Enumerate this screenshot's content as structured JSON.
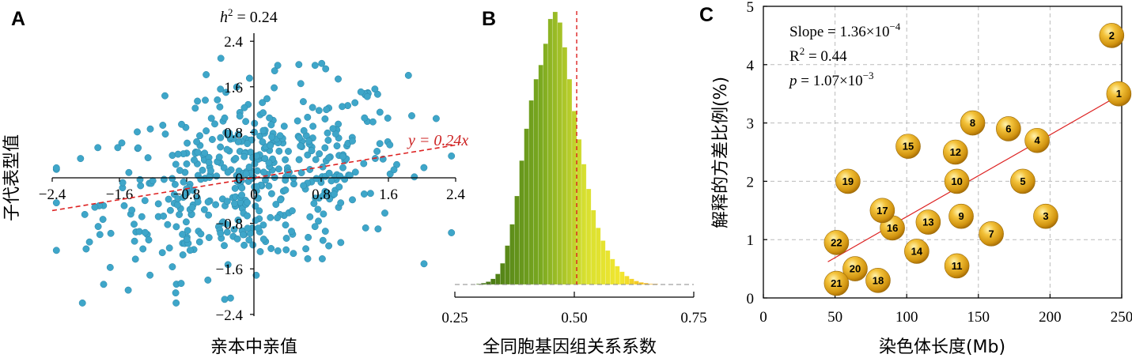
{
  "panels": {
    "a": "A",
    "b": "B",
    "c": "C"
  },
  "colors": {
    "points": "#3ea6c9",
    "regression": "#dd2222",
    "bubble": "#e0a818",
    "grid": "#bbbbbb"
  },
  "chart_data": [
    {
      "type": "scatter",
      "panel": "A",
      "title_prefix": "h",
      "title_sup": "2",
      "title_rest": " = 0.24",
      "xlabel": "亲本中亲值",
      "ylabel": "子代表型值",
      "xlim": [
        -2.4,
        2.4
      ],
      "ylim": [
        -2.4,
        2.4
      ],
      "xticks": [
        "−2.4",
        "−1.6",
        "−0.8",
        "0",
        "0.8",
        "1.6",
        "2.4"
      ],
      "yticks": [
        "2.4",
        "1.6",
        "0.8",
        "0",
        "−0.8",
        "−1.6",
        "−2.4"
      ],
      "fit": {
        "slope": 0.24,
        "label": "y = 0.24x"
      },
      "n_points_approx": 500
    },
    {
      "type": "bar",
      "panel": "B",
      "xlabel": "全同胞基因组关系系数",
      "xlim": [
        0.25,
        0.75
      ],
      "xticks": [
        "0.25",
        "0.50",
        "0.75"
      ],
      "bin_start": 0.295,
      "bin_width": 0.01,
      "values": [
        1,
        2,
        4,
        8,
        15,
        30,
        55,
        85,
        125,
        175,
        220,
        260,
        290,
        310,
        340,
        375,
        385,
        370,
        335,
        290,
        245,
        205,
        170,
        135,
        105,
        80,
        62,
        48,
        36,
        26,
        18,
        12,
        8,
        5,
        3,
        2,
        1,
        1
      ],
      "mean_line": 0.505
    },
    {
      "type": "scatter",
      "panel": "C",
      "xlabel": "染色体长度(Mb)",
      "ylabel": "解释的方差比例(%)",
      "xlim": [
        0,
        250
      ],
      "ylim": [
        0,
        5
      ],
      "xticks": [
        "0",
        "50",
        "100",
        "150",
        "200",
        "250"
      ],
      "yticks": [
        "0",
        "1",
        "2",
        "3",
        "4",
        "5"
      ],
      "stats": {
        "slope_prefix": "Slope = 1.36×10",
        "slope_exp": "−4",
        "r2_prefix": "R",
        "r2_sup": "2",
        "r2_rest": " = 0.44",
        "p_prefix": "p",
        "p_rest": " = 1.07×10",
        "p_exp": "−3"
      },
      "fit_line": {
        "x": [
          45,
          250
        ],
        "y": [
          0.62,
          3.5
        ]
      },
      "points": [
        {
          "label": "1",
          "x": 248,
          "y": 3.5
        },
        {
          "label": "2",
          "x": 243,
          "y": 4.5
        },
        {
          "label": "3",
          "x": 197,
          "y": 1.4
        },
        {
          "label": "4",
          "x": 191,
          "y": 2.7
        },
        {
          "label": "5",
          "x": 181,
          "y": 2.0
        },
        {
          "label": "6",
          "x": 171,
          "y": 2.9
        },
        {
          "label": "7",
          "x": 159,
          "y": 1.1
        },
        {
          "label": "8",
          "x": 146,
          "y": 3.0
        },
        {
          "label": "9",
          "x": 138,
          "y": 1.4
        },
        {
          "label": "10",
          "x": 135,
          "y": 2.0
        },
        {
          "label": "11",
          "x": 135,
          "y": 0.55
        },
        {
          "label": "12",
          "x": 134,
          "y": 2.5
        },
        {
          "label": "13",
          "x": 115,
          "y": 1.3
        },
        {
          "label": "14",
          "x": 107,
          "y": 0.8
        },
        {
          "label": "15",
          "x": 101,
          "y": 2.6
        },
        {
          "label": "16",
          "x": 90,
          "y": 1.2
        },
        {
          "label": "17",
          "x": 83,
          "y": 1.5
        },
        {
          "label": "18",
          "x": 80,
          "y": 0.3
        },
        {
          "label": "19",
          "x": 59,
          "y": 2.0
        },
        {
          "label": "20",
          "x": 64,
          "y": 0.5
        },
        {
          "label": "21",
          "x": 51,
          "y": 0.25
        },
        {
          "label": "22",
          "x": 51,
          "y": 0.95
        }
      ]
    }
  ]
}
